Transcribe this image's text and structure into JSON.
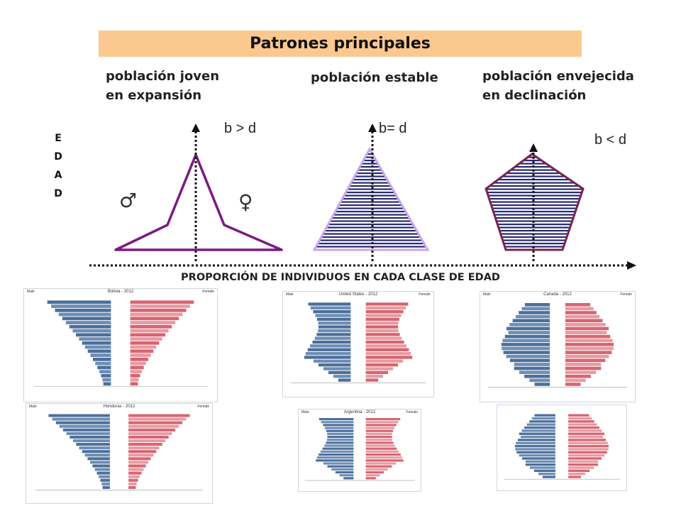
{
  "banner": {
    "title": "Patrones principales"
  },
  "patterns": [
    {
      "line1": "población joven",
      "line2": "en expansión",
      "relation": "b > d"
    },
    {
      "line1": "población estable",
      "line2": "",
      "relation": "b= d"
    },
    {
      "line1": "población envejecida",
      "line2": "en declinación",
      "relation": "b < d"
    }
  ],
  "axis": {
    "y_letters": [
      "E",
      "D",
      "A",
      "D"
    ],
    "x_label": "PROPORCIÓN DE INDIVIDUOS EN CADA CLASE DE EDAD"
  },
  "symbols": {
    "male": "♂",
    "female": "♀"
  },
  "colors": {
    "banner": "#fbc88f",
    "outline_young": "#7b1b82",
    "outline_stable": "#c7a6f2",
    "outline_old": "#7a2450",
    "stripes": "#262a6e",
    "male_bar": "#4d6f99",
    "female_bar": "#d86470"
  },
  "thumbnails": [
    {
      "title": "Bolivia - 2012",
      "left": "Male",
      "right": "Female",
      "shape": "young"
    },
    {
      "title": "United States - 2012",
      "left": "Male",
      "right": "Female",
      "shape": "stable"
    },
    {
      "title": "Canada - 2012",
      "left": "Male",
      "right": "Female",
      "shape": "old"
    },
    {
      "title": "Honduras - 2012",
      "left": "Male",
      "right": "Female",
      "shape": "young"
    },
    {
      "title": "Argentina - 2012",
      "left": "Male",
      "right": "Female",
      "shape": "stable"
    },
    {
      "title": "",
      "left": "",
      "right": "",
      "shape": "old"
    }
  ]
}
